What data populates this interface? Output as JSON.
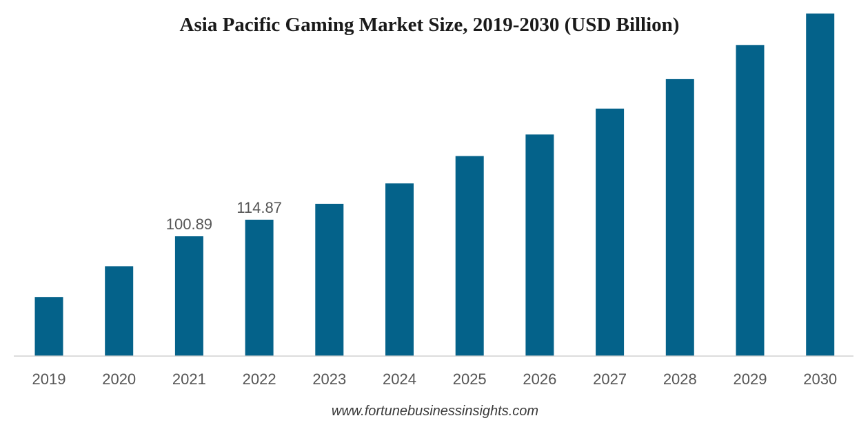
{
  "chart_data": {
    "type": "bar",
    "title": "Asia Pacific Gaming Market Size, 2019-2030 (USD Billion)",
    "xlabel": "",
    "ylabel": "",
    "categories": [
      "2019",
      "2020",
      "2021",
      "2022",
      "2023",
      "2024",
      "2025",
      "2026",
      "2027",
      "2028",
      "2029",
      "2030"
    ],
    "values": [
      49.8,
      75.7,
      100.89,
      114.87,
      128.3,
      145.5,
      168.5,
      186.7,
      208.5,
      233.3,
      262.1,
      288.6
    ],
    "data_labels": [
      "",
      "",
      "100.89",
      "114.87",
      "",
      "",
      "",
      "",
      "",
      "",
      "",
      ""
    ],
    "ylim": [
      0,
      300
    ],
    "grid": false,
    "legend": "none",
    "bar_color": "#04628a",
    "axis_color": "#d0d0d0"
  },
  "footer": {
    "source": "www.fortunebusinessinsights.com"
  }
}
